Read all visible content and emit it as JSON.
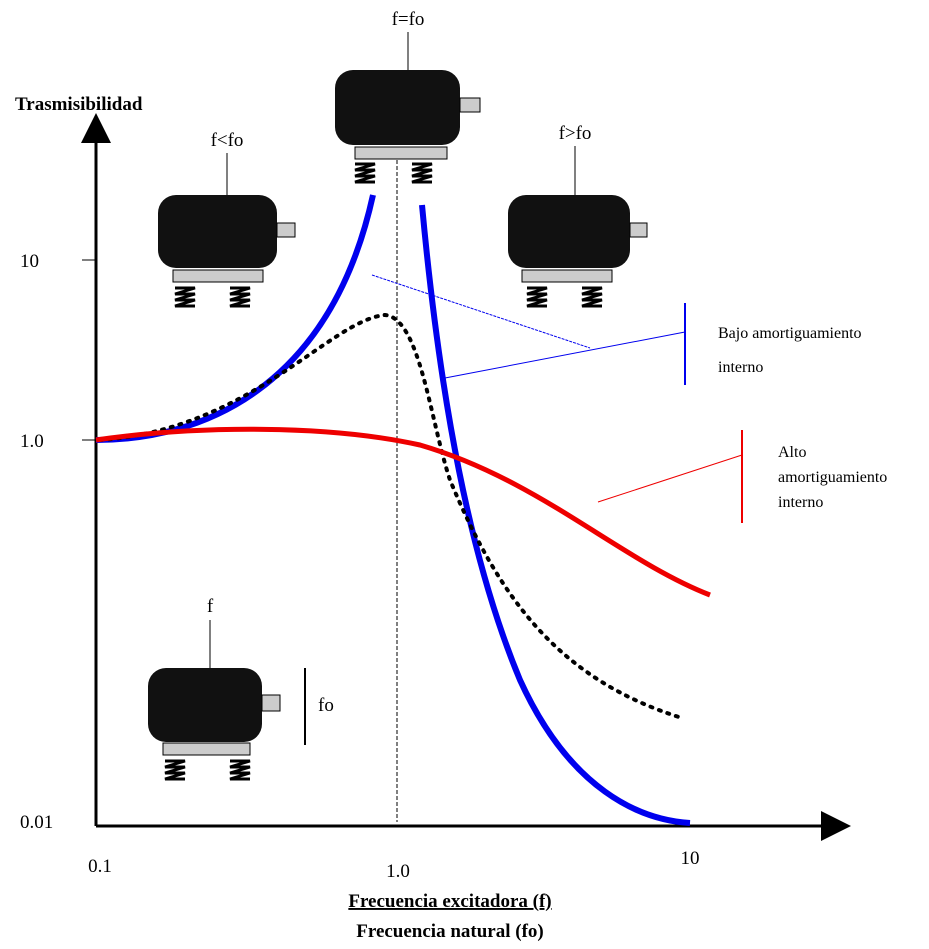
{
  "header": {
    "y_axis_title": "Trasmisibilidad"
  },
  "y_axis": {
    "ticks": [
      "10",
      "1.0",
      "0.01"
    ]
  },
  "x_axis": {
    "ticks": [
      "0.1",
      "1.0",
      "10"
    ],
    "title_lines": [
      "Frecuencia excitadora (f)",
      "Frecuencia natural (fo)"
    ]
  },
  "motors": [
    {
      "label": "f=fo"
    },
    {
      "label": "f<fo"
    },
    {
      "label": "f>fo"
    },
    {
      "label": "f",
      "ratio_label": "fo"
    }
  ],
  "annotations": [
    {
      "lines": [
        "Bajo amortiguamiento",
        "interno"
      ]
    },
    {
      "lines": [
        "Alto",
        "amortiguamiento",
        "interno"
      ]
    }
  ]
}
